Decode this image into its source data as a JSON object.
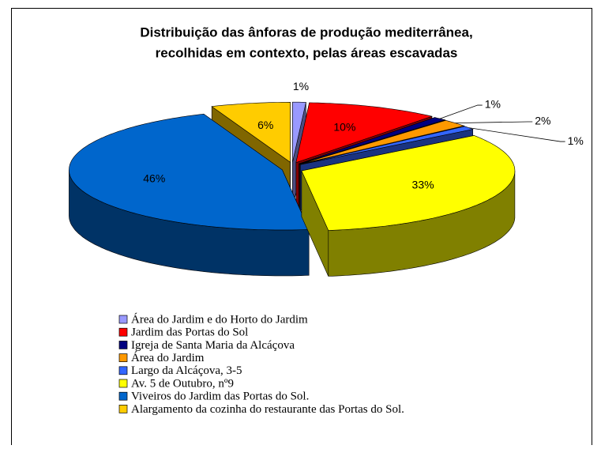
{
  "chart_data": {
    "type": "pie3d",
    "title": [
      "Distribuição das ânforas de produção mediterrânea,",
      "recolhidas em contexto, pelas áreas escavadas"
    ],
    "categories": [
      "Área do Jardim e do Horto do Jardim",
      "Jardim das Portas do Sol",
      "Igreja de Santa Maria da Alcáçova",
      "Área do Jardim",
      "Largo da Alcáçova, 3-5",
      "Av. 5 de Outubro, nº9",
      "Viveiros do Jardim das Portas do Sol.",
      "Alargamento da cozinha do restaurante das Portas do Sol."
    ],
    "values": [
      1,
      10,
      1,
      2,
      1,
      33,
      46,
      6
    ],
    "value_labels": [
      "1%",
      "10%",
      "1%",
      "2%",
      "1%",
      "33%",
      "46%",
      "6%"
    ],
    "colors": [
      "#9999ff",
      "#ff0000",
      "#000080",
      "#ff9900",
      "#3366ff",
      "#ffff00",
      "#0066cc",
      "#ffcc00"
    ],
    "legend": "bottom"
  }
}
